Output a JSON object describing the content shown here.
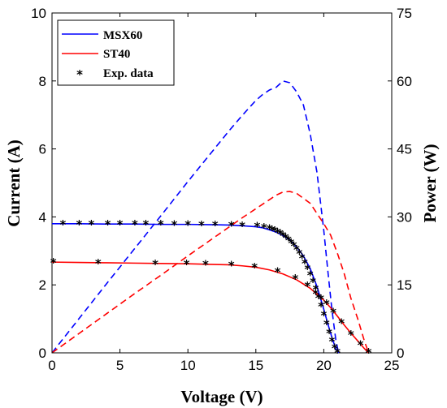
{
  "chart_data": {
    "type": "line",
    "xlabel": "Voltage (V)",
    "ylabel": "Current (A)",
    "y2label": "Power (W)",
    "xlim": [
      0,
      25
    ],
    "ylim": [
      0,
      10
    ],
    "y2lim": [
      0,
      75
    ],
    "xticks": [
      0,
      5,
      10,
      15,
      20,
      25
    ],
    "yticks": [
      0,
      2,
      4,
      6,
      8,
      10
    ],
    "y2ticks": [
      0,
      15,
      30,
      45,
      60,
      75
    ],
    "grid": false,
    "legend": {
      "position": "top-left",
      "entries": [
        {
          "label": "MSX60",
          "color": "#0000ff",
          "style": "line"
        },
        {
          "label": "ST40",
          "color": "#ff0000",
          "style": "line"
        },
        {
          "label": "Exp. data",
          "color": "#000000",
          "style": "marker"
        }
      ]
    },
    "series": [
      {
        "name": "MSX60",
        "axis": "left",
        "color": "#0000ff",
        "style": "solid",
        "x": [
          0,
          2,
          4,
          6,
          8,
          10,
          12,
          13,
          14,
          15,
          15.5,
          16,
          16.5,
          17,
          17.5,
          18,
          18.5,
          19,
          19.5,
          20,
          20.3,
          20.6,
          20.9,
          21.1
        ],
        "y": [
          3.8,
          3.8,
          3.79,
          3.79,
          3.78,
          3.78,
          3.77,
          3.76,
          3.74,
          3.71,
          3.68,
          3.62,
          3.55,
          3.45,
          3.32,
          3.12,
          2.85,
          2.48,
          1.95,
          1.28,
          0.85,
          0.45,
          0.1,
          0
        ]
      },
      {
        "name": "MSX60",
        "axis": "right",
        "color": "#0000ff",
        "style": "dashed",
        "x": [
          0,
          2,
          4,
          6,
          8,
          10,
          12,
          13,
          14,
          15,
          15.5,
          16,
          16.5,
          17,
          17.5,
          18,
          18.5,
          19,
          19.5,
          20,
          20.3,
          20.6,
          20.9,
          21.1
        ],
        "y": [
          0,
          7.6,
          15.2,
          22.7,
          30.2,
          37.8,
          45.2,
          48.9,
          52.4,
          55.7,
          57.0,
          58.0,
          58.6,
          60.0,
          59.6,
          57.6,
          54.7,
          48.3,
          39.8,
          27.0,
          18.0,
          9.5,
          2.5,
          0
        ]
      },
      {
        "name": "ST40",
        "axis": "left",
        "color": "#ff0000",
        "style": "solid",
        "x": [
          0,
          2,
          4,
          6,
          8,
          10,
          12,
          13,
          14,
          15,
          16,
          17,
          18,
          19,
          20,
          20.5,
          21,
          21.5,
          22,
          22.5,
          23,
          23.3
        ],
        "y": [
          2.67,
          2.66,
          2.65,
          2.64,
          2.63,
          2.62,
          2.6,
          2.59,
          2.56,
          2.52,
          2.44,
          2.32,
          2.15,
          1.9,
          1.55,
          1.33,
          1.08,
          0.82,
          0.58,
          0.35,
          0.12,
          0
        ]
      },
      {
        "name": "ST40",
        "axis": "right",
        "color": "#ff0000",
        "style": "dashed",
        "x": [
          0,
          2,
          4,
          6,
          8,
          10,
          12,
          13,
          14,
          15,
          16,
          16.5,
          17,
          17.5,
          18,
          19,
          20,
          20.5,
          21,
          21.5,
          22,
          22.5,
          23,
          23.3
        ],
        "y": [
          0,
          4.3,
          8.6,
          12.9,
          17.1,
          21.4,
          25.6,
          27.7,
          29.8,
          31.8,
          33.8,
          34.8,
          35.5,
          35.6,
          35.2,
          33.0,
          28.5,
          26.0,
          22.0,
          17.5,
          12.0,
          7.5,
          2.5,
          0
        ]
      },
      {
        "name": "Exp. data",
        "axis": "left",
        "color": "#000000",
        "style": "marker",
        "x": [
          0.8,
          2.0,
          2.9,
          4.1,
          5.0,
          6.1,
          6.9,
          8.0,
          9.0,
          10.0,
          11.0,
          12.0,
          13.2,
          14.0,
          15.1,
          15.6,
          16.0,
          16.2,
          16.4,
          16.6,
          16.8,
          17.0,
          17.2,
          17.4,
          17.6,
          17.8,
          18.0,
          18.2,
          18.4,
          18.6,
          18.8,
          19.0,
          19.2,
          19.4,
          19.6,
          19.8,
          20.0,
          20.2,
          20.4,
          20.6,
          20.8,
          21.0
        ],
        "y": [
          3.8,
          3.8,
          3.8,
          3.8,
          3.8,
          3.79,
          3.79,
          3.79,
          3.78,
          3.78,
          3.77,
          3.77,
          3.76,
          3.75,
          3.73,
          3.7,
          3.66,
          3.63,
          3.6,
          3.56,
          3.52,
          3.46,
          3.4,
          3.33,
          3.25,
          3.16,
          3.05,
          2.93,
          2.8,
          2.65,
          2.48,
          2.3,
          2.1,
          1.88,
          1.64,
          1.38,
          1.12,
          0.86,
          0.6,
          0.36,
          0.15,
          0.02
        ]
      },
      {
        "name": "Exp. data",
        "axis": "left",
        "color": "#000000",
        "style": "marker",
        "x": [
          0.1,
          3.4,
          7.6,
          9.9,
          11.3,
          13.2,
          14.9,
          16.6,
          17.9,
          18.8,
          19.4,
          19.8,
          20.2,
          20.7,
          21.3,
          22.0,
          22.7,
          23.3
        ],
        "y": [
          2.67,
          2.65,
          2.63,
          2.62,
          2.61,
          2.59,
          2.53,
          2.4,
          2.2,
          1.98,
          1.75,
          1.6,
          1.45,
          1.2,
          0.9,
          0.55,
          0.25,
          0.02
        ]
      }
    ]
  }
}
